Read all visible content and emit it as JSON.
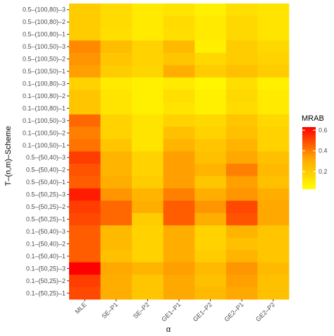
{
  "chart_data": {
    "type": "heatmap",
    "xlabel": "α",
    "ylabel": "T–(n,m)–Scheme",
    "x_categories": [
      "MLE",
      "SE–P1",
      "SE–P2",
      "GE1–P1",
      "GE1–P2",
      "GE2–P1",
      "GE2–P2"
    ],
    "y_categories": [
      "0.5–(100,80)–3",
      "0.5–(100,80)–2",
      "0.5–(100,80)–1",
      "0.5–(100,50)–3",
      "0.5–(100,50)–2",
      "0.5–(100,50)–1",
      "0.1–(100,80)–3",
      "0.1–(100,80)–2",
      "0.1–(100,80)–1",
      "0.1–(100,50)–3",
      "0.1–(100,50)–2",
      "0.1–(100,50)–1",
      "0.5–(50,40)–3",
      "0.5–(50,40)–2",
      "0.5–(50,40)–1",
      "0.5–(50,25)–3",
      "0.5–(50,25)–2",
      "0.5–(50,25)–1",
      "0.1–(50,40)–3",
      "0.1–(50,40)–2",
      "0.1–(50,40)–1",
      "0.1–(50,25)–3",
      "0.1–(50,25)–2",
      "0.1–(50,25)–1"
    ],
    "values": [
      [
        0.2,
        0.15,
        0.1,
        0.12,
        0.08,
        0.14,
        0.12
      ],
      [
        0.2,
        0.15,
        0.1,
        0.15,
        0.1,
        0.16,
        0.12
      ],
      [
        0.2,
        0.14,
        0.1,
        0.14,
        0.1,
        0.16,
        0.12
      ],
      [
        0.38,
        0.25,
        0.18,
        0.26,
        0.08,
        0.2,
        0.16
      ],
      [
        0.36,
        0.22,
        0.18,
        0.22,
        0.16,
        0.2,
        0.18
      ],
      [
        0.34,
        0.2,
        0.17,
        0.3,
        0.2,
        0.24,
        0.2
      ],
      [
        0.18,
        0.1,
        0.08,
        0.1,
        0.06,
        0.14,
        0.08
      ],
      [
        0.22,
        0.12,
        0.08,
        0.14,
        0.08,
        0.16,
        0.1
      ],
      [
        0.22,
        0.12,
        0.08,
        0.12,
        0.08,
        0.15,
        0.1
      ],
      [
        0.44,
        0.18,
        0.12,
        0.18,
        0.16,
        0.22,
        0.16
      ],
      [
        0.4,
        0.18,
        0.12,
        0.24,
        0.18,
        0.24,
        0.18
      ],
      [
        0.42,
        0.22,
        0.12,
        0.28,
        0.22,
        0.28,
        0.18
      ],
      [
        0.52,
        0.28,
        0.18,
        0.34,
        0.24,
        0.32,
        0.24
      ],
      [
        0.48,
        0.28,
        0.18,
        0.34,
        0.28,
        0.4,
        0.26
      ],
      [
        0.46,
        0.3,
        0.2,
        0.34,
        0.22,
        0.34,
        0.24
      ],
      [
        0.58,
        0.36,
        0.28,
        0.4,
        0.3,
        0.36,
        0.3
      ],
      [
        0.52,
        0.44,
        0.3,
        0.46,
        0.36,
        0.5,
        0.32
      ],
      [
        0.5,
        0.44,
        0.2,
        0.46,
        0.3,
        0.48,
        0.32
      ],
      [
        0.46,
        0.26,
        0.18,
        0.3,
        0.18,
        0.28,
        0.22
      ],
      [
        0.46,
        0.26,
        0.18,
        0.3,
        0.18,
        0.24,
        0.22
      ],
      [
        0.46,
        0.24,
        0.18,
        0.3,
        0.2,
        0.28,
        0.22
      ],
      [
        0.66,
        0.32,
        0.28,
        0.34,
        0.26,
        0.36,
        0.26
      ],
      [
        0.52,
        0.3,
        0.22,
        0.32,
        0.24,
        0.34,
        0.24
      ],
      [
        0.5,
        0.3,
        0.22,
        0.32,
        0.26,
        0.32,
        0.24
      ]
    ],
    "legend": {
      "title": "MRAB",
      "placement": "right",
      "range": [
        0.03,
        0.63
      ],
      "ticks": [
        "0.2",
        "0.4",
        "0.6"
      ],
      "tick_values": [
        0.2,
        0.4,
        0.6
      ],
      "low_color": "#ffff00",
      "mid_color": "#ffa500",
      "high_color": "#ff0000"
    },
    "panel_background": "#ebebeb",
    "grid": true
  }
}
